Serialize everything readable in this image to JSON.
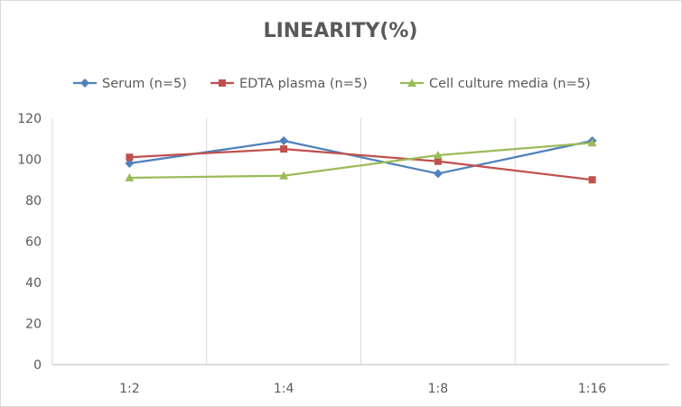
{
  "chart_data": {
    "type": "line",
    "title": "LINEARITY(%)",
    "xlabel": "",
    "ylabel": "",
    "categories": [
      "1:2",
      "1:4",
      "1:8",
      "1:16"
    ],
    "ylim": [
      0,
      120
    ],
    "yticks": [
      0,
      20,
      40,
      60,
      80,
      100,
      120
    ],
    "grid": "vertical category separators",
    "legend_position": "top",
    "series": [
      {
        "name": "Serum (n=5)",
        "values": [
          98,
          109,
          93,
          109
        ],
        "color": "#4F81BD",
        "marker": "diamond"
      },
      {
        "name": "EDTA plasma (n=5)",
        "values": [
          101,
          105,
          99,
          90
        ],
        "color": "#C0504D",
        "marker": "square"
      },
      {
        "name": "Cell culture media (n=5)",
        "values": [
          91,
          92,
          102,
          108
        ],
        "color": "#9BBB59",
        "marker": "triangle"
      }
    ]
  }
}
